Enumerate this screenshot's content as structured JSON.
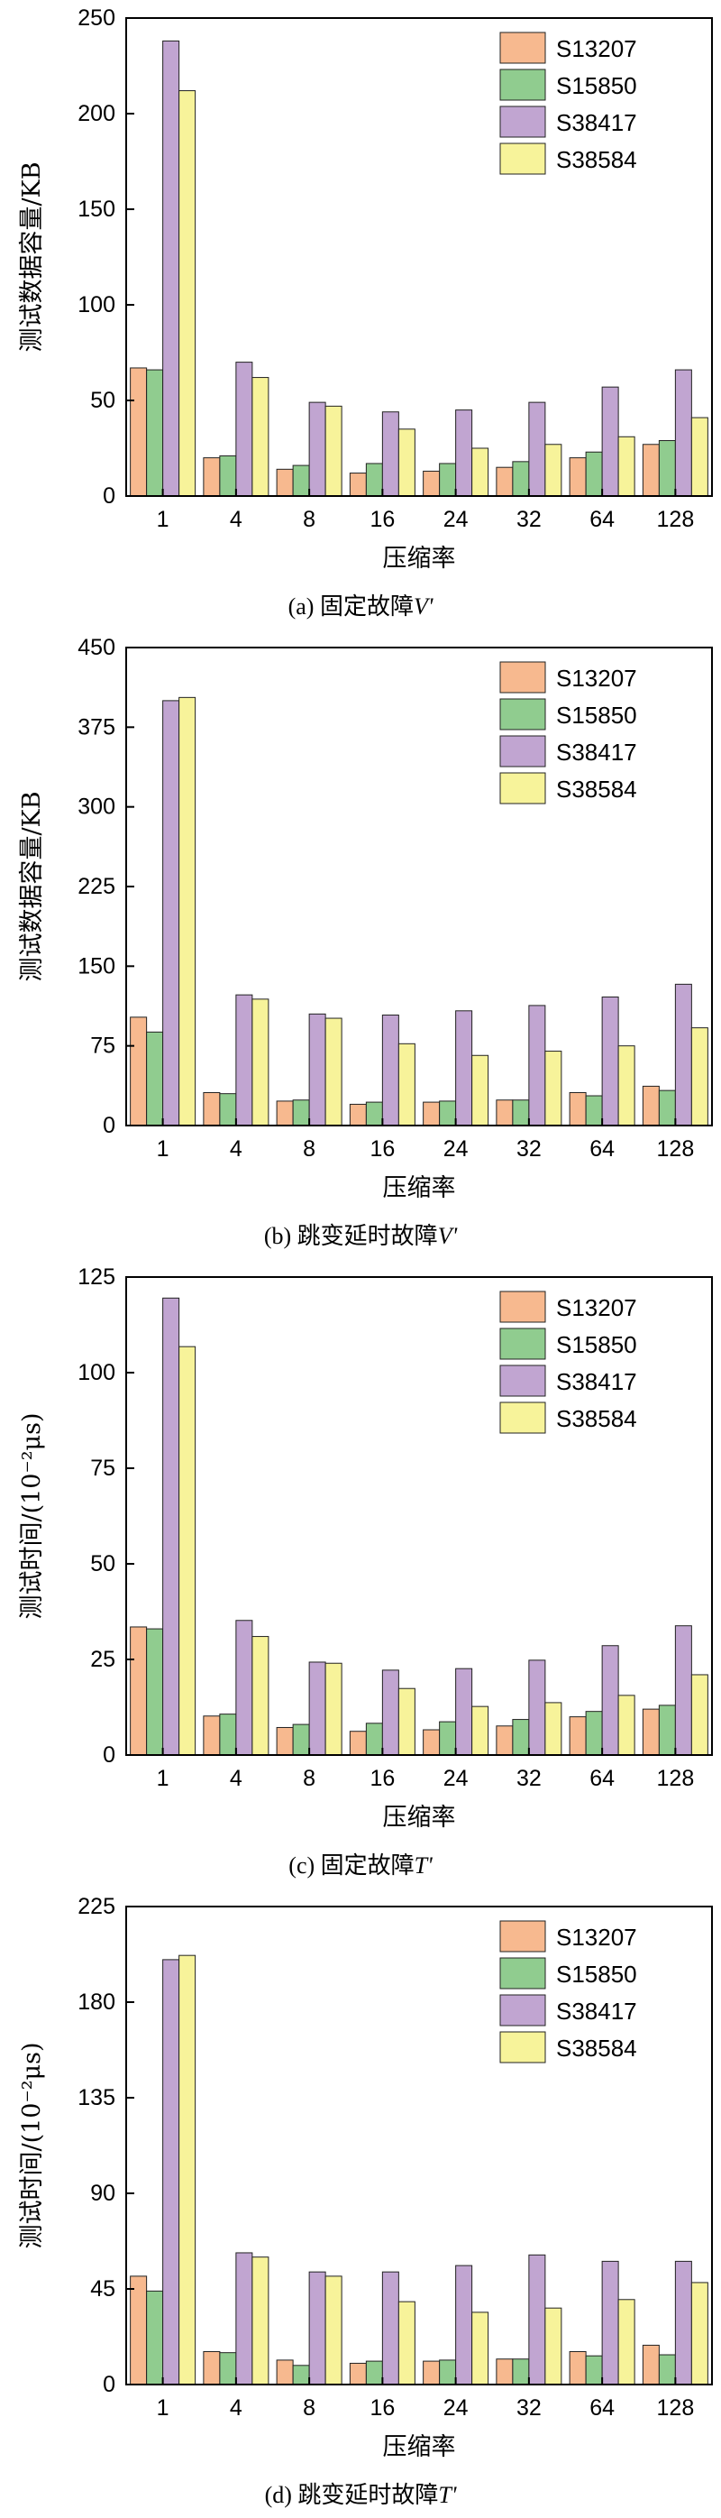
{
  "colors": {
    "S13207": "#f7b98f",
    "S15850": "#90cc8f",
    "S38417": "#c1a5d1",
    "S38584": "#f7f39a"
  },
  "chart_data": [
    {
      "type": "bar",
      "caption_prefix": "(a) 固定故障",
      "caption_var": "V'",
      "xlabel": "压缩率",
      "ylabel": "测试数据容量/KB",
      "ylim": [
        0,
        250
      ],
      "yticks": [
        "0",
        "50",
        "100",
        "150",
        "200",
        "250"
      ],
      "categories": [
        "1",
        "4",
        "8",
        "16",
        "24",
        "32",
        "64",
        "128"
      ],
      "legend_position": "top-right",
      "series": [
        {
          "name": "S13207",
          "values": [
            67,
            20,
            14,
            12,
            13,
            15,
            20,
            27
          ]
        },
        {
          "name": "S15850",
          "values": [
            66,
            21,
            16,
            17,
            17,
            18,
            23,
            29
          ]
        },
        {
          "name": "S38417",
          "values": [
            238,
            70,
            49,
            44,
            45,
            49,
            57,
            66
          ]
        },
        {
          "name": "S38584",
          "values": [
            212,
            62,
            47,
            35,
            25,
            27,
            31,
            41
          ]
        }
      ]
    },
    {
      "type": "bar",
      "caption_prefix": "(b) 跳变延时故障",
      "caption_var": "V'",
      "xlabel": "压缩率",
      "ylabel": "测试数据容量/KB",
      "ylim": [
        0,
        450
      ],
      "yticks": [
        "0",
        "75",
        "150",
        "225",
        "300",
        "375",
        "450"
      ],
      "categories": [
        "1",
        "4",
        "8",
        "16",
        "24",
        "32",
        "64",
        "128"
      ],
      "legend_position": "top-right",
      "series": [
        {
          "name": "S13207",
          "values": [
            102,
            31,
            23,
            20,
            22,
            24,
            31,
            37
          ]
        },
        {
          "name": "S15850",
          "values": [
            88,
            30,
            24,
            22,
            23,
            24,
            28,
            33
          ]
        },
        {
          "name": "S38417",
          "values": [
            400,
            123,
            105,
            104,
            108,
            113,
            121,
            133
          ]
        },
        {
          "name": "S38584",
          "values": [
            403,
            119,
            101,
            77,
            66,
            70,
            75,
            92
          ]
        }
      ]
    },
    {
      "type": "bar",
      "caption_prefix": "(c) 固定故障",
      "caption_var": "T'",
      "xlabel": "压缩率",
      "ylabel": "测试时间/(10⁻²μs)",
      "ylim": [
        0,
        125
      ],
      "yticks": [
        "0",
        "25",
        "50",
        "75",
        "100",
        "125"
      ],
      "categories": [
        "1",
        "4",
        "8",
        "16",
        "24",
        "32",
        "64",
        "128"
      ],
      "legend_position": "top-right",
      "series": [
        {
          "name": "S13207",
          "values": [
            33.5,
            10.2,
            7.2,
            6.2,
            6.6,
            7.6,
            10,
            12
          ]
        },
        {
          "name": "S15850",
          "values": [
            33,
            10.7,
            8,
            8.3,
            8.7,
            9.3,
            11.4,
            13
          ]
        },
        {
          "name": "S38417",
          "values": [
            119.5,
            35.2,
            24.3,
            22.2,
            22.6,
            24.8,
            28.6,
            33.8
          ]
        },
        {
          "name": "S38584",
          "values": [
            106.8,
            31,
            24,
            17.4,
            12.7,
            13.7,
            15.6,
            21
          ]
        }
      ]
    },
    {
      "type": "bar",
      "caption_prefix": "(d) 跳变延时故障",
      "caption_var": "T'",
      "xlabel": "压缩率",
      "ylabel": "测试时间/(10⁻²μs)",
      "ylim": [
        0,
        225
      ],
      "yticks": [
        "0",
        "45",
        "90",
        "135",
        "180",
        "225"
      ],
      "categories": [
        "1",
        "4",
        "8",
        "16",
        "24",
        "32",
        "64",
        "128"
      ],
      "legend_position": "top-right",
      "series": [
        {
          "name": "S13207",
          "values": [
            51,
            15.5,
            11.5,
            10,
            11,
            12,
            15.5,
            18.5
          ]
        },
        {
          "name": "S15850",
          "values": [
            44,
            15,
            9,
            11,
            11.5,
            12,
            13.5,
            14
          ]
        },
        {
          "name": "S38417",
          "values": [
            200,
            62,
            53,
            53,
            56,
            61,
            58,
            58
          ]
        },
        {
          "name": "S38584",
          "values": [
            202,
            60,
            51,
            39,
            34,
            36,
            40,
            48
          ]
        }
      ]
    }
  ]
}
